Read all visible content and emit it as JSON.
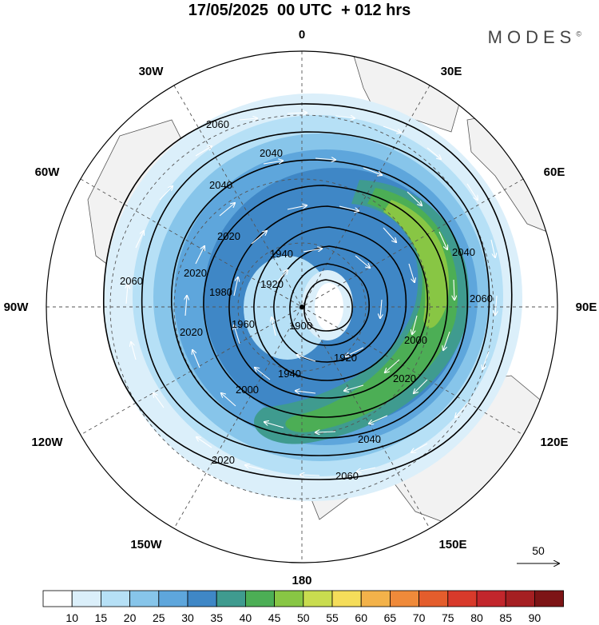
{
  "title": "17/05/2025  00 UTC  + 012 hrs",
  "brand": "MODES",
  "brand_mark": "©",
  "longitude_labels": [
    "0",
    "30E",
    "60E",
    "90E",
    "120E",
    "150E",
    "180",
    "150W",
    "120W",
    "90W",
    "60W",
    "30W"
  ],
  "contour_labels": [
    "2060",
    "2040",
    "2040",
    "2020",
    "2060",
    "2020",
    "2020",
    "1980",
    "1960",
    "1940",
    "1920",
    "1900",
    "1940",
    "2000",
    "2020",
    "2040",
    "2060",
    "2040",
    "2060",
    "1920",
    "2000",
    "2020"
  ],
  "vector_reference": "50",
  "colorbar": {
    "ticks": [
      "10",
      "15",
      "20",
      "25",
      "30",
      "35",
      "40",
      "45",
      "50",
      "55",
      "60",
      "65",
      "70",
      "75",
      "80",
      "85",
      "90"
    ],
    "colors": [
      "#ffffff",
      "#dbeffa",
      "#b6e0f6",
      "#87c5ea",
      "#5ea6dc",
      "#3f87c6",
      "#3f9b8f",
      "#4cae55",
      "#88c644",
      "#c9dc4f",
      "#f5dd5a",
      "#f3b24a",
      "#ef8a3a",
      "#e45d2c",
      "#d83a2b",
      "#c2262c",
      "#a51f22",
      "#7d1416"
    ]
  },
  "colors": {
    "land": "#f2f2f2",
    "coast": "#555555",
    "contour": "#000000",
    "arrow": "#ffffff"
  }
}
